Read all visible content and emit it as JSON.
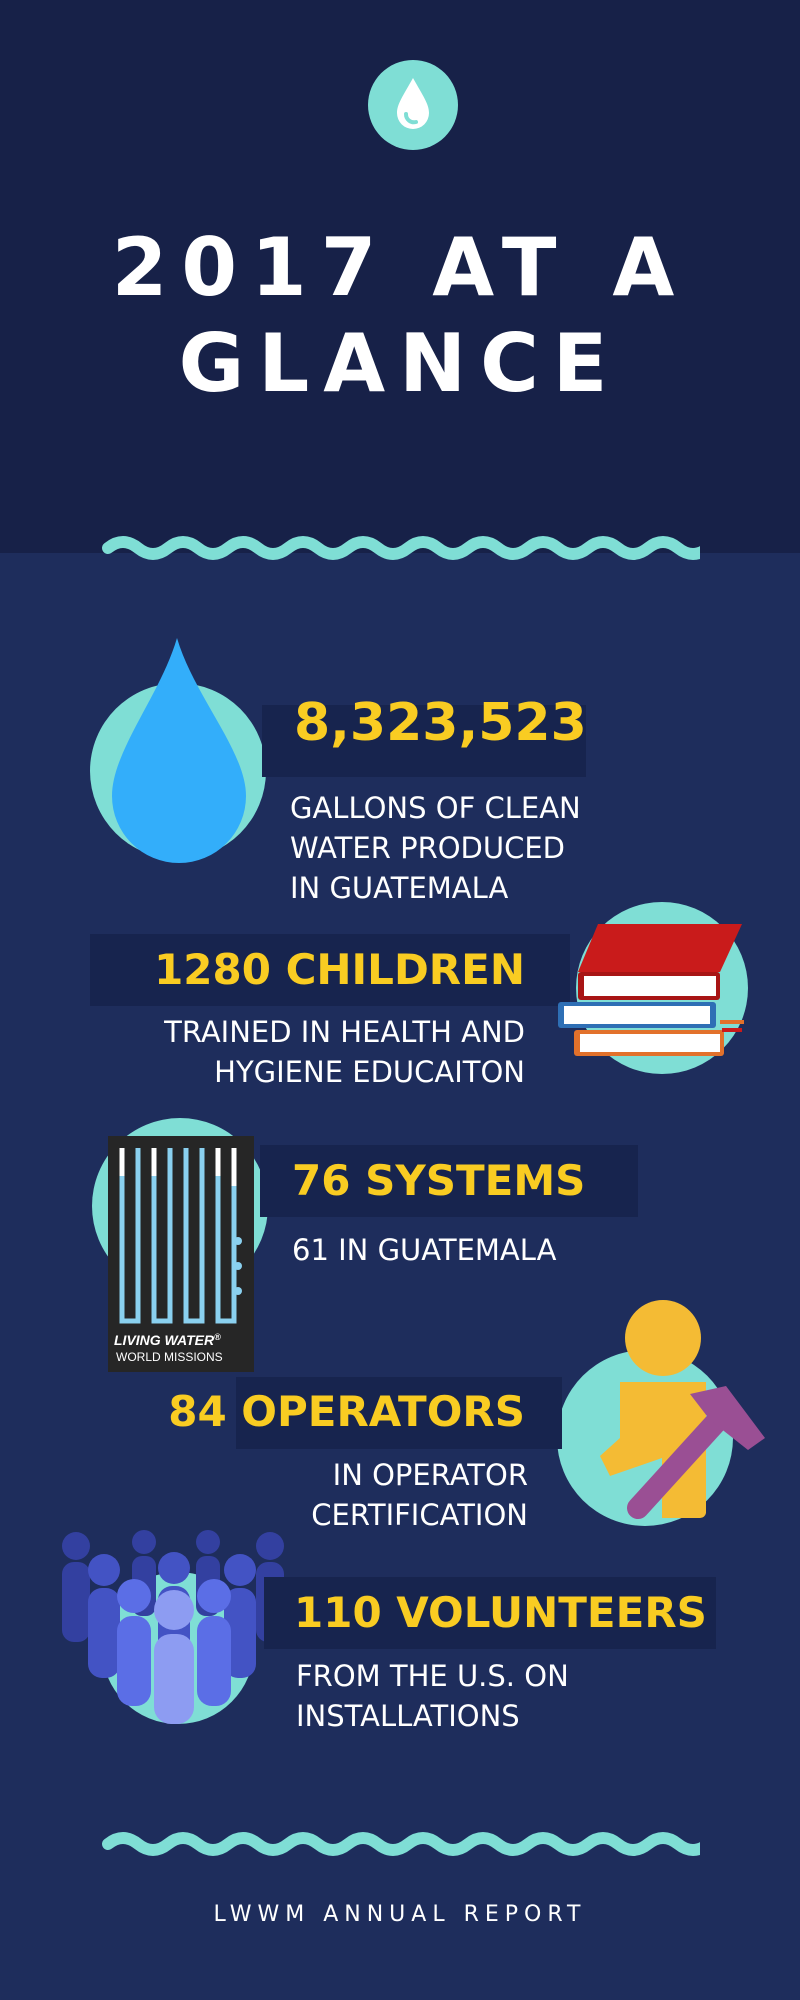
{
  "header": {
    "title_line1": "2017 AT A",
    "title_line2": "GLANCE",
    "icon": "water-drop-icon"
  },
  "stats": [
    {
      "number": "8,323,523",
      "desc_lines": [
        "GALLONS OF CLEAN",
        "WATER PRODUCED",
        "IN GUATEMALA"
      ],
      "icon": "water-drop-icon"
    },
    {
      "number": "1280 CHILDREN",
      "desc_lines": [
        "TRAINED IN HEALTH AND",
        "HYGIENE EDUCAITON"
      ],
      "icon": "books-icon"
    },
    {
      "number": "76 SYSTEMS",
      "desc_lines": [
        "61 IN GUATEMALA"
      ],
      "icon": "water-system-logo"
    },
    {
      "number": "84 OPERATORS",
      "desc_lines": [
        "IN OPERATOR",
        "CERTIFICATION"
      ],
      "icon": "worker-hammer-icon"
    },
    {
      "number": "110 VOLUNTEERS",
      "desc_lines": [
        "FROM THE U.S. ON",
        "INSTALLATIONS"
      ],
      "icon": "people-group-icon"
    }
  ],
  "logo": {
    "line1": "LIVING WATER",
    "registered": "®",
    "line2": "WORLD MISSIONS"
  },
  "footer": {
    "text": "LWWM ANNUAL REPORT"
  },
  "colors": {
    "header_bg": "#172148",
    "body_bg": "#1e2d5c",
    "accent": "#7fded5",
    "number": "#f9cc22",
    "drop": "#33aefa"
  }
}
